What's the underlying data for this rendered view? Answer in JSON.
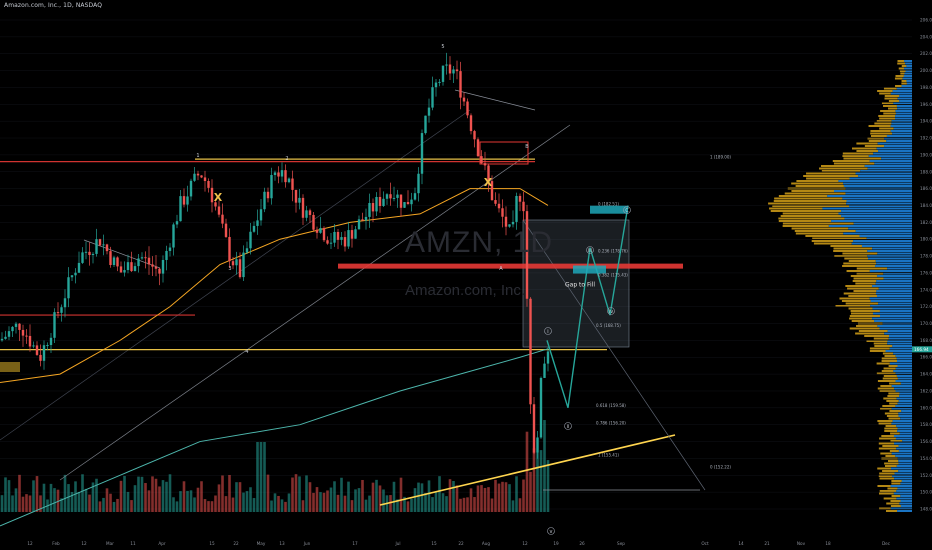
{
  "header": {
    "title": "Amazon.com, Inc., 1D, NASDAQ"
  },
  "watermark": {
    "ticker": "AMZN, 1D",
    "name": "Amazon.com, Inc."
  },
  "colors": {
    "up": "#26a69a",
    "down": "#ef5350",
    "ma_fast": "#f5a623",
    "ma_slow": "#4db6ac",
    "support": "#ffd54f",
    "resistance": "#e53935",
    "vp_up": "#1e88e5",
    "vp_down": "#d4a017",
    "projection": "#26a69a"
  },
  "chart_data": {
    "type": "candlestick",
    "title": "Amazon.com, Inc., 1D, NASDAQ",
    "price_axis": {
      "ticks": [
        148,
        150,
        152,
        154,
        156,
        158,
        160,
        162,
        164,
        166,
        168,
        170,
        172,
        174,
        176,
        178,
        180,
        182,
        184,
        186,
        188,
        190,
        192,
        194,
        196,
        198,
        200,
        202,
        204,
        206
      ],
      "range": [
        147,
        207
      ],
      "current_price": "166.94"
    },
    "time_axis": {
      "labels": [
        "12",
        "Feb",
        "12",
        "Mar",
        "11",
        "Apr",
        "15",
        "22",
        "May",
        "13",
        "Jun",
        "17",
        "Jul",
        "15",
        "22",
        "Aug",
        "12",
        "19",
        "26",
        "Sep",
        "Oct",
        "14",
        "21",
        "Nov",
        "18",
        "Dec"
      ]
    },
    "price_path": [
      [
        0,
        168
      ],
      [
        20,
        170
      ],
      [
        40,
        166
      ],
      [
        60,
        172
      ],
      [
        80,
        178
      ],
      [
        100,
        180
      ],
      [
        120,
        176
      ],
      [
        140,
        178
      ],
      [
        160,
        176
      ],
      [
        180,
        184
      ],
      [
        200,
        188
      ],
      [
        210,
        186
      ],
      [
        220,
        182
      ],
      [
        230,
        178
      ],
      [
        240,
        176
      ],
      [
        250,
        180
      ],
      [
        262,
        184
      ],
      [
        275,
        188
      ],
      [
        285,
        188
      ],
      [
        300,
        184
      ],
      [
        315,
        182
      ],
      [
        330,
        180
      ],
      [
        345,
        180
      ],
      [
        360,
        182
      ],
      [
        375,
        184
      ],
      [
        390,
        186
      ],
      [
        405,
        184
      ],
      [
        415,
        186
      ],
      [
        425,
        194
      ],
      [
        435,
        198
      ],
      [
        445,
        200
      ],
      [
        455,
        200
      ],
      [
        465,
        196
      ],
      [
        475,
        192
      ],
      [
        485,
        188
      ],
      [
        495,
        184
      ],
      [
        505,
        182
      ],
      [
        512,
        180
      ],
      [
        518,
        186
      ],
      [
        524,
        184
      ],
      [
        530,
        162
      ],
      [
        536,
        152
      ],
      [
        541,
        164
      ],
      [
        547,
        167
      ]
    ],
    "moving_averages": [
      {
        "name": "",
        "color": "#f5a623",
        "values": [
          [
            0,
            163
          ],
          [
            60,
            164
          ],
          [
            120,
            168
          ],
          [
            170,
            172
          ],
          [
            220,
            177
          ],
          [
            280,
            180
          ],
          [
            350,
            182
          ],
          [
            420,
            183
          ],
          [
            470,
            186
          ],
          [
            520,
            186
          ],
          [
            548,
            184
          ]
        ]
      },
      {
        "name": "",
        "color": "#4db6ac",
        "values": [
          [
            0,
            146
          ],
          [
            120,
            152
          ],
          [
            200,
            156
          ],
          [
            300,
            158
          ],
          [
            400,
            162
          ],
          [
            460,
            164
          ],
          [
            520,
            166
          ],
          [
            548,
            167
          ]
        ]
      }
    ],
    "horizontal_levels": [
      {
        "kind": "resistance",
        "price": 189.2,
        "from_x": 0,
        "to_x": 535
      },
      {
        "kind": "support",
        "price": 189.5,
        "from_x": 195,
        "to_x": 535
      },
      {
        "kind": "resistance",
        "price": 176.8,
        "from_x": 338,
        "to_x": 683
      },
      {
        "kind": "resistance",
        "price": 171.0,
        "from_x": 0,
        "to_x": 195
      },
      {
        "kind": "support",
        "price": 166.9,
        "from_x": 0,
        "to_x": 607
      }
    ],
    "fib_levels": [
      {
        "label": "1 (189.00)",
        "price": 189.6
      },
      {
        "label": "0 (182.51)",
        "price": 184.0
      },
      {
        "label": "0.236 (178.76)",
        "price": 178.4
      },
      {
        "label": "0.382 (175.43)",
        "price": 175.6
      },
      {
        "label": "0.5 (168.75)",
        "price": 169.6
      },
      {
        "label": "0.618 (159.58)",
        "price": 160.1
      },
      {
        "label": "0.786 (156.20)",
        "price": 158.0
      },
      {
        "label": "1 (155.41)",
        "price": 154.2
      },
      {
        "label": "0 (152.22)",
        "price": 152.8
      }
    ],
    "wave_labels": [
      "1",
      "2",
      "3",
      "4",
      "5",
      "A",
      "B",
      "C",
      "i",
      "ii",
      "iii",
      "iv",
      "v"
    ],
    "annotations": [
      {
        "text": "Gap to Fill",
        "price": 174.6
      }
    ],
    "projection_path": [
      [
        547,
        168
      ],
      [
        568,
        160
      ],
      [
        590,
        179
      ],
      [
        610,
        171
      ],
      [
        628,
        184
      ]
    ],
    "target_zones": [
      {
        "price": 183.5,
        "from_x": 590,
        "to_x": 628
      },
      {
        "price": 176.4,
        "from_x": 573,
        "to_x": 606
      }
    ]
  }
}
